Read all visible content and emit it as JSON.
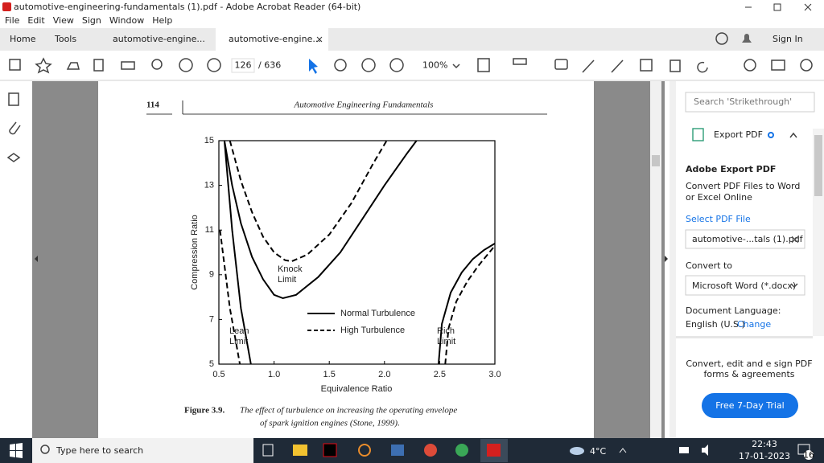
{
  "window": {
    "title": "automotive-engineering-fundamentals (1).pdf - Adobe Acrobat Reader (64-bit)",
    "menu": [
      "File",
      "Edit",
      "View",
      "Sign",
      "Window",
      "Help"
    ]
  },
  "tabs": {
    "home": "Home",
    "tools": "Tools",
    "documents": [
      "automotive-engine...",
      "automotive-engine..."
    ],
    "sign_in": "Sign In"
  },
  "toolbar": {
    "page": "126",
    "page_count": "/ 636",
    "zoom": "100%"
  },
  "page": {
    "number": "114",
    "running_head": "Automotive Engineering Fundamentals",
    "figure": {
      "type": "line",
      "xlabel": "Equivalence Ratio",
      "ylabel": "Compression Ratio",
      "xlim": [
        0.5,
        3
      ],
      "ylim": [
        5,
        15
      ],
      "xticks": [
        0.5,
        {
          "value": 1,
          "label": "1.0"
        },
        1.5,
        {
          "value": 2,
          "label": "2.0"
        },
        2.5,
        {
          "value": 3,
          "label": "3.0"
        }
      ],
      "yticks": [
        5,
        7,
        9,
        11,
        13,
        15
      ],
      "series": [
        {
          "name": "Normal Turbulence",
          "color": "#000000",
          "dash": "solid",
          "x": [
            0.55,
            0.62,
            0.7,
            0.8,
            0.9,
            1.0,
            1.08,
            1.2,
            1.4,
            1.6,
            1.8,
            2.0,
            2.2,
            2.29,
            null,
            0.55,
            0.62,
            0.7,
            0.79,
            null,
            2.49,
            2.52,
            2.6,
            2.7,
            2.8,
            2.9,
            3.0
          ],
          "y": [
            15,
            13,
            11.3,
            9.8,
            8.8,
            8.1,
            7.95,
            8.1,
            8.9,
            10.0,
            11.5,
            13.0,
            14.4,
            15,
            null,
            15,
            11,
            7.5,
            5,
            null,
            5,
            6.8,
            8.2,
            9.1,
            9.7,
            10.1,
            10.4
          ]
        },
        {
          "name": "High Turbulence",
          "color": "#000000",
          "dash": "dashed",
          "x": [
            0.6,
            0.7,
            0.8,
            0.9,
            1.0,
            1.1,
            1.16,
            1.3,
            1.5,
            1.7,
            1.9,
            2.02,
            null,
            0.51,
            0.6,
            0.69,
            null,
            2.55,
            2.58,
            2.65,
            2.75,
            2.85,
            2.95,
            3.0
          ],
          "y": [
            15,
            13.2,
            11.8,
            10.7,
            10.0,
            9.65,
            9.6,
            9.9,
            10.8,
            12.2,
            14.0,
            15,
            null,
            11,
            7.5,
            5,
            null,
            5,
            6.6,
            7.8,
            8.7,
            9.4,
            10.0,
            10.3
          ]
        }
      ],
      "annotations": [
        [
          "Knock",
          "Limit"
        ],
        [
          "Lean",
          "Limit"
        ],
        [
          "Rich",
          "Limit"
        ]
      ]
    },
    "caption": {
      "label": "Figure 3.9.",
      "text": [
        "The effect of turbulence on increasing the operating envelope",
        "of spark ignition engines (Stone, 1999)."
      ]
    }
  },
  "panel": {
    "search": "Search 'Strikethrough'",
    "export_pdf": "Export PDF",
    "heading": "Adobe Export PDF",
    "description": [
      "Convert PDF Files to Word",
      "or Excel Online"
    ],
    "select_file": "Select PDF File",
    "file": "automotive-...tals (1).pdf",
    "convert_to": "Convert to",
    "format": "Microsoft Word (*.docx)",
    "language_label": "Document Language:",
    "language": "English (U.S.)",
    "change": "Change",
    "promo": [
      "Convert, edit and e sign PDF",
      "forms & agreements"
    ],
    "trial": "Free 7-Day Trial"
  },
  "taskbar": {
    "search": "Type here to search",
    "temperature": "4°C",
    "time": "22:43",
    "date": "17-01-2023",
    "notifications": "16"
  }
}
